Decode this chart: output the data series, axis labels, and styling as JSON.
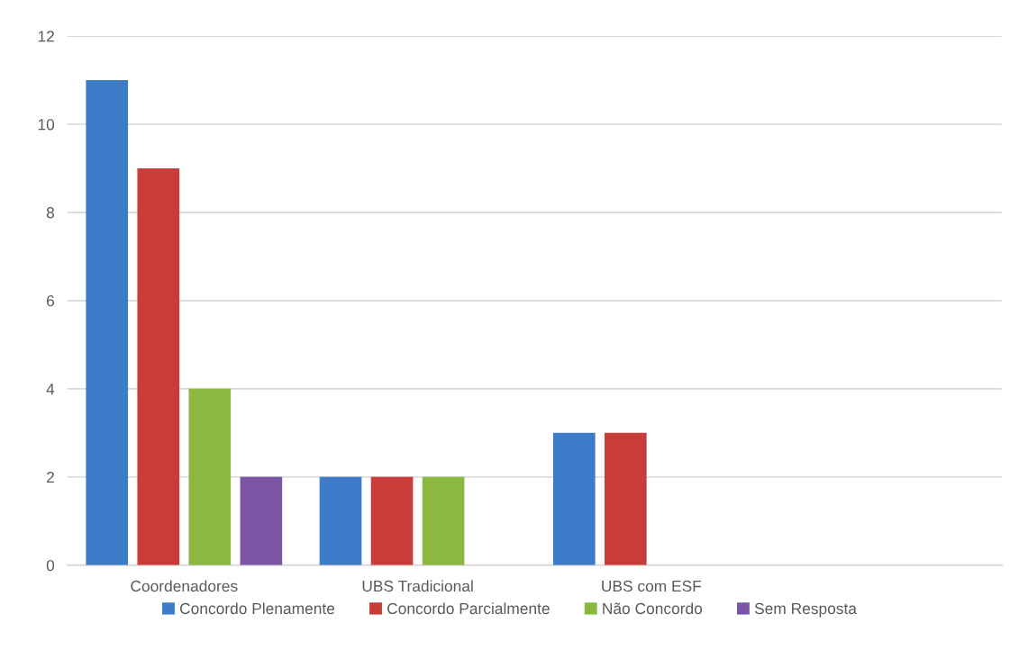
{
  "chart_data": {
    "type": "bar",
    "categories": [
      "Coordenadores",
      "UBS Tradicional",
      "UBS com ESF",
      null
    ],
    "series": [
      {
        "name": "Concordo Plenamente",
        "color": "#3d7cc9",
        "values": [
          11,
          2,
          3,
          null
        ]
      },
      {
        "name": "Concordo Parcialmente",
        "color": "#c83c3a",
        "values": [
          9,
          2,
          3,
          null
        ]
      },
      {
        "name": "Não Concordo",
        "color": "#8cb840",
        "values": [
          4,
          2,
          null,
          null
        ]
      },
      {
        "name": "Sem Resposta",
        "color": "#7b55a5",
        "values": [
          2,
          null,
          null,
          null
        ]
      }
    ],
    "ylim": [
      0,
      12
    ],
    "yticks": [
      0,
      2,
      4,
      6,
      8,
      10,
      12
    ],
    "grid": "y",
    "legend": "bottom"
  }
}
